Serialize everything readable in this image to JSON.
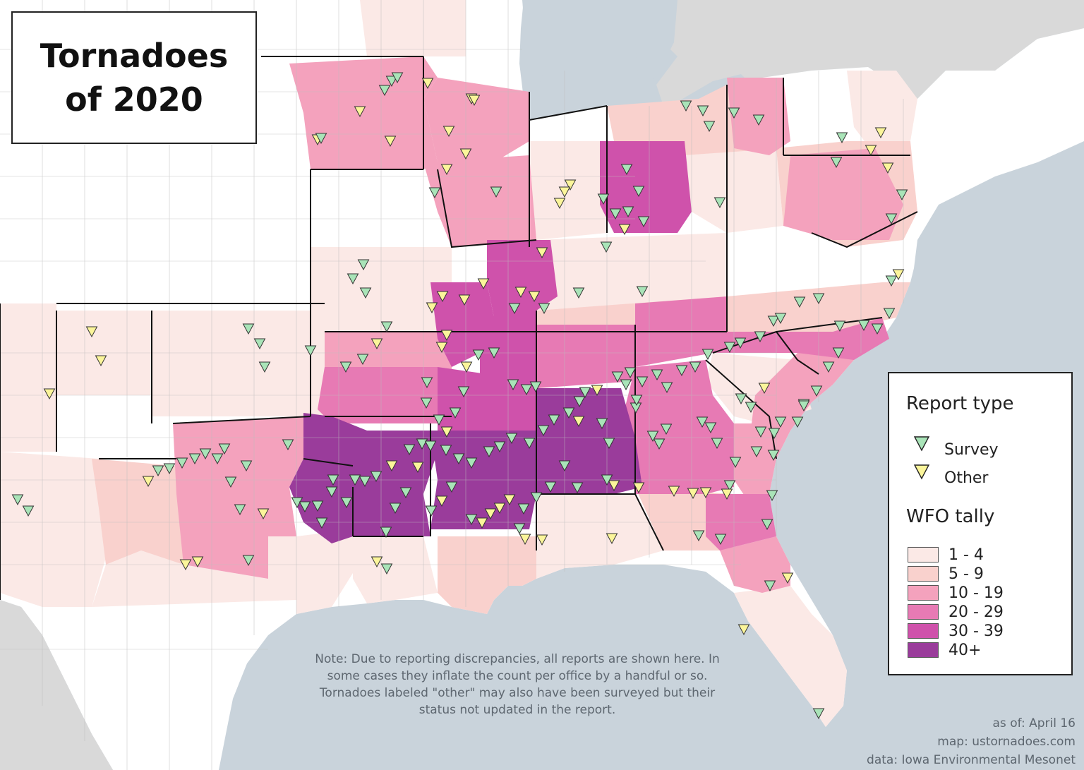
{
  "title": {
    "line1": "Tornadoes",
    "line2": "of 2020"
  },
  "legend": {
    "report_heading": "Report type",
    "report_types": [
      {
        "label": "Survey",
        "color": "#a9e4b8",
        "icon": "triangle-down-icon"
      },
      {
        "label": "Other",
        "color": "#fbf59a",
        "icon": "triangle-down-icon"
      }
    ],
    "tally_heading": "WFO tally",
    "tally_bins": [
      {
        "label": "1 - 4",
        "color": "#fbe9e6"
      },
      {
        "label": "5 - 9",
        "color": "#f9d1cd"
      },
      {
        "label": "10 - 19",
        "color": "#f4a2bd"
      },
      {
        "label": "20 - 29",
        "color": "#e77ab4"
      },
      {
        "label": "30 - 39",
        "color": "#cf52ab"
      },
      {
        "label": "40+",
        "color": "#9a3c9b"
      }
    ]
  },
  "note": "Note: Due to reporting discrepancies, all reports are shown here. In some cases they inflate the count per office by a handful or so. Tornadoes labeled \"other\" may also have been surveyed but their status not updated in the report.",
  "credits": {
    "as_of": "as of: April 16",
    "map": "map: ustornadoes.com",
    "data": "data: Iowa Environmental Mesonet"
  },
  "colors": {
    "water": "#c9d3db",
    "land_none": "#ffffff",
    "canada": "#d9d9d9",
    "county_line": "#bdbdbd",
    "state_line": "#111111"
  }
}
